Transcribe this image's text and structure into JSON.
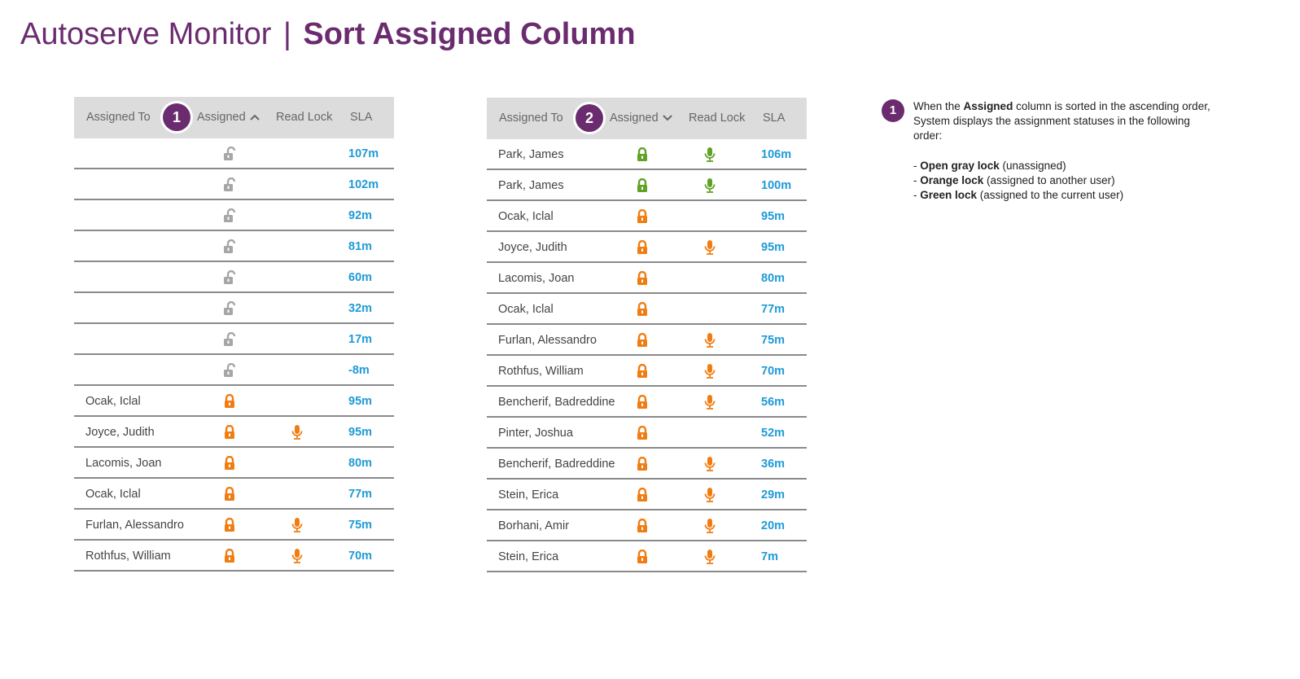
{
  "header": {
    "app_title": "Autoserve Monitor",
    "separator": "|",
    "page_title": "Sort Assigned Column"
  },
  "colors": {
    "brand": "#6b2c6f",
    "header_bg": "#dcdcdc",
    "sla_text": "#1e9ad6",
    "lock_gray": "#a6a6a6",
    "lock_orange": "#f07d12",
    "lock_green": "#5fa226"
  },
  "columns": {
    "assigned_to": "Assigned To",
    "assigned": "Assigned",
    "read_lock": "Read Lock",
    "sla": "SLA"
  },
  "grid_left": {
    "marker": "1",
    "sort_direction": "ascending",
    "sort_icon": "chevron-up-icon",
    "rows": [
      {
        "name": "",
        "lock": "gray-open",
        "mic": "",
        "sla": "107m"
      },
      {
        "name": "",
        "lock": "gray-open",
        "mic": "",
        "sla": "102m"
      },
      {
        "name": "",
        "lock": "gray-open",
        "mic": "",
        "sla": "92m"
      },
      {
        "name": "",
        "lock": "gray-open",
        "mic": "",
        "sla": "81m"
      },
      {
        "name": "",
        "lock": "gray-open",
        "mic": "",
        "sla": "60m"
      },
      {
        "name": "",
        "lock": "gray-open",
        "mic": "",
        "sla": "32m"
      },
      {
        "name": "",
        "lock": "gray-open",
        "mic": "",
        "sla": "17m"
      },
      {
        "name": "",
        "lock": "gray-open",
        "mic": "",
        "sla": "-8m"
      },
      {
        "name": "Ocak, Iclal",
        "lock": "orange",
        "mic": "",
        "sla": "95m"
      },
      {
        "name": "Joyce, Judith",
        "lock": "orange",
        "mic": "orange",
        "sla": "95m"
      },
      {
        "name": "Lacomis, Joan",
        "lock": "orange",
        "mic": "",
        "sla": "80m"
      },
      {
        "name": "Ocak, Iclal",
        "lock": "orange",
        "mic": "",
        "sla": "77m"
      },
      {
        "name": "Furlan, Alessandro",
        "lock": "orange",
        "mic": "orange",
        "sla": "75m"
      },
      {
        "name": "Rothfus, William",
        "lock": "orange",
        "mic": "orange",
        "sla": "70m"
      }
    ]
  },
  "grid_right": {
    "marker": "2",
    "sort_direction": "descending",
    "sort_icon": "chevron-down-icon",
    "rows": [
      {
        "name": "Park, James",
        "lock": "green",
        "mic": "green",
        "sla": "106m"
      },
      {
        "name": "Park, James",
        "lock": "green",
        "mic": "green",
        "sla": "100m"
      },
      {
        "name": "Ocak, Iclal",
        "lock": "orange",
        "mic": "",
        "sla": "95m"
      },
      {
        "name": "Joyce, Judith",
        "lock": "orange",
        "mic": "orange",
        "sla": "95m"
      },
      {
        "name": "Lacomis, Joan",
        "lock": "orange",
        "mic": "",
        "sla": "80m"
      },
      {
        "name": "Ocak, Iclal",
        "lock": "orange",
        "mic": "",
        "sla": "77m"
      },
      {
        "name": "Furlan, Alessandro",
        "lock": "orange",
        "mic": "orange",
        "sla": "75m"
      },
      {
        "name": "Rothfus, William",
        "lock": "orange",
        "mic": "orange",
        "sla": "70m"
      },
      {
        "name": "Bencherif, Badreddine",
        "lock": "orange",
        "mic": "orange",
        "sla": "56m"
      },
      {
        "name": "Pinter, Joshua",
        "lock": "orange",
        "mic": "",
        "sla": "52m"
      },
      {
        "name": "Bencherif, Badreddine",
        "lock": "orange",
        "mic": "orange",
        "sla": "36m"
      },
      {
        "name": "Stein, Erica",
        "lock": "orange",
        "mic": "orange",
        "sla": "29m"
      },
      {
        "name": "Borhani, Amir",
        "lock": "orange",
        "mic": "orange",
        "sla": "20m"
      },
      {
        "name": "Stein, Erica",
        "lock": "orange",
        "mic": "orange",
        "sla": "7m"
      }
    ]
  },
  "annotation": {
    "marker": "1",
    "line1_pre": "When the ",
    "line1_bold": "Assigned",
    "line1_post": " column is sorted in the ascending order,",
    "line2": "System displays the assignment statuses in the following",
    "line3": "order:",
    "items": [
      {
        "prefix": "- ",
        "bold": "Open gray lock",
        "rest": " (unassigned)"
      },
      {
        "prefix": "- ",
        "bold": "Orange lock",
        "rest": " (assigned to another user)"
      },
      {
        "prefix": "- ",
        "bold": "Green lock",
        "rest": " (assigned to the current user)"
      }
    ]
  }
}
